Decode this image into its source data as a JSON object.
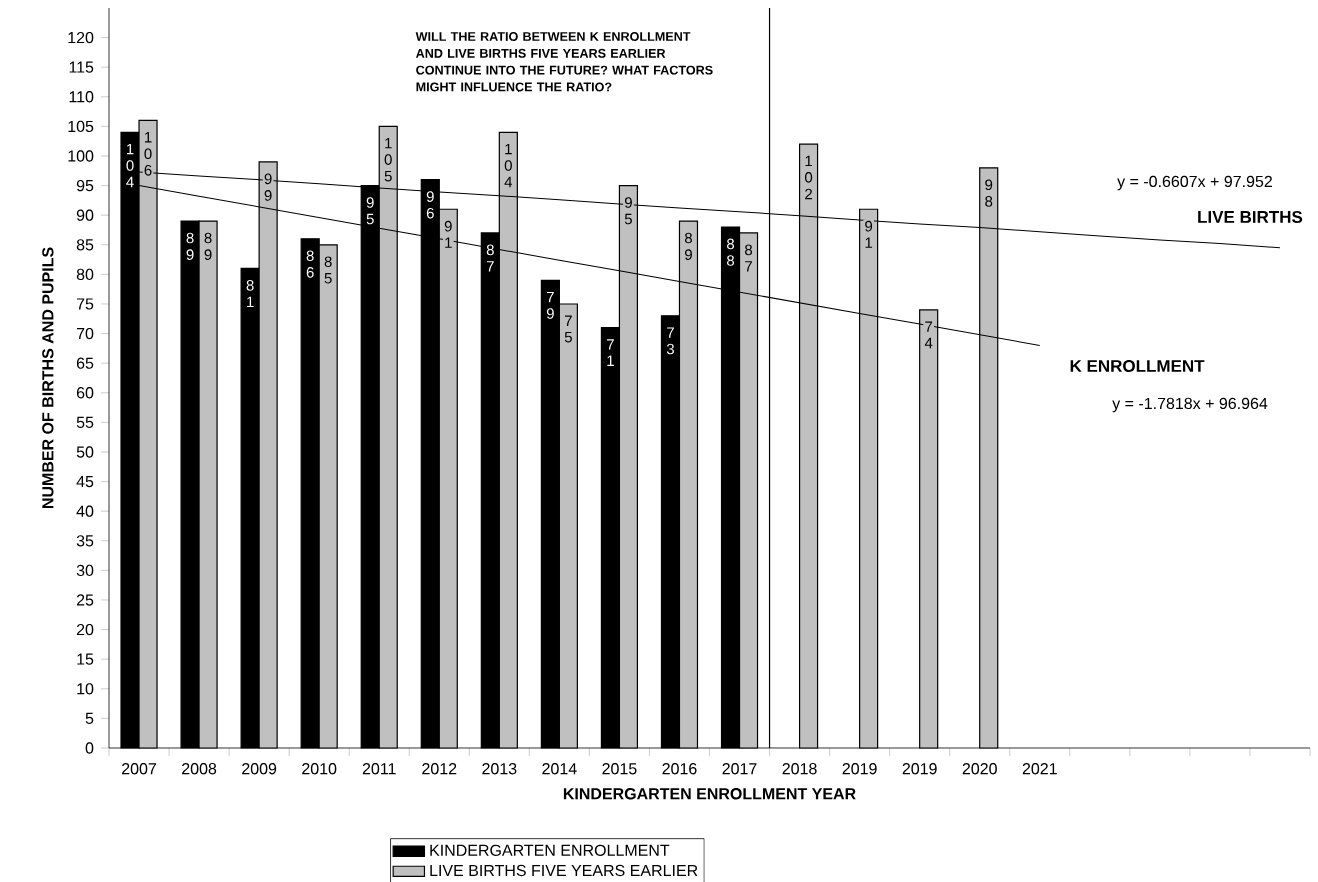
{
  "chart_data": {
    "type": "bar",
    "xlabel": "KINDERGARTEN ENROLLMENT YEAR",
    "ylabel": "NUMBER OF BIRTHS AND PUPILS",
    "categories": [
      "2007",
      "2008",
      "2009",
      "2010",
      "2011",
      "2012",
      "2013",
      "2014",
      "2015",
      "2016",
      "2017",
      "2018",
      "2019",
      "2019",
      "2020",
      "2021",
      null,
      null,
      null,
      null
    ],
    "series": [
      {
        "name": "KINDERGARTEN ENROLLMENT",
        "color": "#000000",
        "values": [
          104,
          89,
          81,
          86,
          95,
          96,
          87,
          79,
          71,
          73,
          88,
          null,
          null,
          null,
          null,
          null,
          null,
          null,
          null,
          null
        ],
        "value_labels": [
          "104",
          "89",
          "81",
          "86",
          "95",
          "96",
          "87",
          "79",
          "71",
          "73",
          "88",
          null,
          null,
          null,
          null,
          null,
          null,
          null,
          null,
          null
        ]
      },
      {
        "name": "LIVE BIRTHS FIVE YEARS EARLIER",
        "color": "#c0c0c0",
        "values": [
          106,
          89,
          99,
          85,
          105,
          91,
          104,
          75,
          95,
          89,
          87,
          102,
          91,
          74,
          98,
          null,
          null,
          null,
          null,
          null
        ],
        "value_labels": [
          "106",
          "89",
          "99",
          "85",
          "105",
          "91",
          "104",
          "75",
          "95",
          "89",
          "87",
          "102",
          "91",
          "74",
          "98",
          null,
          null,
          null,
          null,
          null
        ]
      },
      {
        "type": "line",
        "color": "#000000",
        "values": [
          97.3,
          96.6,
          96.0,
          95.3,
          94.6,
          93.9,
          93.3,
          92.6,
          91.9,
          91.2,
          90.6,
          89.9,
          89.2,
          88.5,
          87.9,
          87.2,
          86.5,
          85.8,
          85.2,
          84.5
        ]
      },
      {
        "type": "line",
        "color": "#000000",
        "values": [
          95.0,
          93.2,
          91.4,
          89.6,
          87.8,
          86.0,
          84.2,
          82.4,
          80.6,
          78.8,
          77.0,
          75.2,
          73.4,
          71.6,
          69.8,
          68.0,
          null,
          null,
          null,
          null
        ]
      }
    ],
    "ylim": [
      0,
      125
    ],
    "yticks": [
      0,
      5,
      10,
      15,
      20,
      25,
      30,
      35,
      40,
      45,
      50,
      55,
      60,
      65,
      70,
      75,
      80,
      85,
      90,
      95,
      100,
      105,
      110,
      115,
      120
    ],
    "legend": "bottom",
    "annotations": [
      "WILL THE RATIO BETWEEN K ENROLLMENT AND LIVE BIRTHS FIVE YEARS EARLIER CONTINUE INTO THE FUTURE?  WHAT FACTORS MIGHT INFLUENCE THE RATIO?",
      "y = -0.6607x + 97.952",
      "LIVE BIRTHS",
      "K ENROLLMENT",
      "y = -1.7818x + 96.964"
    ]
  }
}
